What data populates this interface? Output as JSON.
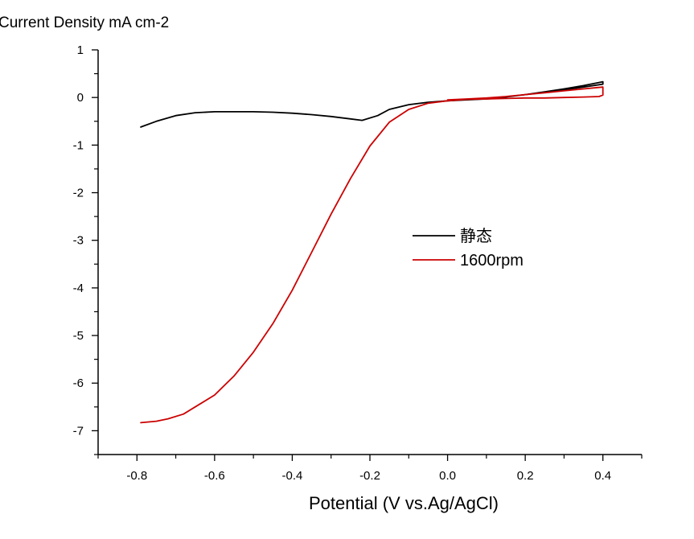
{
  "chart_data": {
    "type": "line",
    "ylabel": "Current Density mA cm-2",
    "xlabel": "Potential (V vs.Ag/AgCl)",
    "xlim": [
      -0.9,
      0.5
    ],
    "ylim": [
      -7.5,
      1
    ],
    "x_ticks": [
      -0.8,
      -0.6,
      -0.4,
      -0.2,
      0.0,
      0.2,
      0.4
    ],
    "x_tick_labels": [
      "-0.8",
      "-0.6",
      "-0.4",
      "-0.2",
      "0.0",
      "0.2",
      "0.4"
    ],
    "y_ticks": [
      1,
      0,
      -1,
      -2,
      -3,
      -4,
      -5,
      -6,
      -7
    ],
    "y_tick_labels": [
      "1",
      "0",
      "-1",
      "-2",
      "-3",
      "-4",
      "-5",
      "-6",
      "-7"
    ],
    "grid": false,
    "legend": "center-right",
    "series": [
      {
        "name": "静态",
        "color": "#000000",
        "x": [
          -0.79,
          -0.75,
          -0.7,
          -0.65,
          -0.6,
          -0.55,
          -0.5,
          -0.45,
          -0.4,
          -0.35,
          -0.3,
          -0.25,
          -0.22,
          -0.18,
          -0.15,
          -0.1,
          -0.05,
          0.0,
          0.05,
          0.1,
          0.15,
          0.2,
          0.25,
          0.3,
          0.35,
          0.4,
          0.4,
          0.35,
          0.3,
          0.25,
          0.2,
          0.15,
          0.12,
          0.1
        ],
        "y": [
          -0.62,
          -0.5,
          -0.38,
          -0.32,
          -0.3,
          -0.3,
          -0.3,
          -0.31,
          -0.33,
          -0.36,
          -0.4,
          -0.45,
          -0.48,
          -0.38,
          -0.25,
          -0.15,
          -0.1,
          -0.07,
          -0.05,
          -0.03,
          0.01,
          0.06,
          0.12,
          0.18,
          0.25,
          0.33,
          0.28,
          0.22,
          0.16,
          0.11,
          0.06,
          0.01,
          -0.02,
          -0.03
        ]
      },
      {
        "name": "1600rpm",
        "color": "#cc0000",
        "x": [
          -0.79,
          -0.75,
          -0.72,
          -0.68,
          -0.65,
          -0.6,
          -0.55,
          -0.5,
          -0.45,
          -0.4,
          -0.35,
          -0.3,
          -0.25,
          -0.2,
          -0.15,
          -0.1,
          -0.05,
          0.0,
          0.05,
          0.1,
          0.15,
          0.2,
          0.25,
          0.3,
          0.35,
          0.39,
          0.4,
          0.4,
          0.35,
          0.3,
          0.25,
          0.2,
          0.15,
          0.1,
          0.05,
          0.0
        ],
        "y": [
          -6.83,
          -6.8,
          -6.75,
          -6.65,
          -6.5,
          -6.25,
          -5.85,
          -5.35,
          -4.75,
          -4.05,
          -3.25,
          -2.45,
          -1.7,
          -1.02,
          -0.52,
          -0.25,
          -0.12,
          -0.07,
          -0.04,
          -0.03,
          -0.02,
          -0.01,
          -0.01,
          0.0,
          0.01,
          0.02,
          0.05,
          0.22,
          0.18,
          0.14,
          0.1,
          0.06,
          0.02,
          -0.01,
          -0.03,
          -0.05
        ]
      }
    ]
  }
}
